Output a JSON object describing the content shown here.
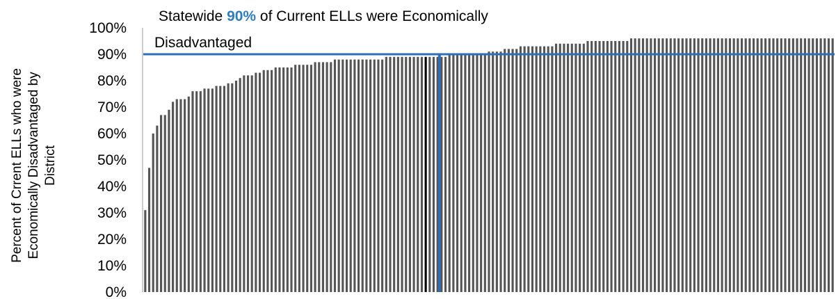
{
  "chart_data": {
    "type": "bar",
    "ylabel_lines": [
      "Percent of Crrent ELLs who were",
      "Economically Disadvantaged by",
      "District"
    ],
    "ylim": [
      0,
      100
    ],
    "yticks": [
      0,
      10,
      20,
      30,
      40,
      50,
      60,
      70,
      80,
      90,
      100
    ],
    "tick_suffix": "%",
    "reference_line": {
      "value": 90
    },
    "annotation": {
      "prefix": "Statewide ",
      "highlight": "90%",
      "suffix": " of Current ELLs were Economically",
      "line2": "Disadvantaged"
    },
    "highlight_index": 71,
    "highlight_position_index": 72,
    "values": [
      31,
      47,
      60,
      63,
      67,
      67,
      69,
      72,
      73,
      73,
      73,
      74,
      76,
      76,
      76,
      77,
      77,
      77,
      78,
      78,
      78,
      79,
      79,
      80,
      81,
      82,
      82,
      82,
      83,
      83,
      84,
      84,
      84,
      85,
      85,
      85,
      85,
      85,
      86,
      86,
      86,
      86,
      86,
      87,
      87,
      87,
      87,
      87,
      88,
      88,
      88,
      88,
      88,
      88,
      88,
      88,
      88,
      88,
      88,
      88,
      88,
      89,
      89,
      89,
      89,
      89,
      89,
      89,
      89,
      89,
      89,
      89,
      89,
      89,
      89,
      89,
      89,
      90,
      90,
      90,
      90,
      90,
      90,
      90,
      90,
      90,
      90,
      91,
      91,
      91,
      91,
      92,
      92,
      92,
      92,
      93,
      93,
      93,
      93,
      93,
      93,
      93,
      93,
      93,
      94,
      94,
      94,
      94,
      94,
      94,
      94,
      94,
      95,
      95,
      95,
      95,
      95,
      95,
      95,
      95,
      95,
      95,
      95,
      96,
      96,
      96,
      96,
      96,
      96,
      96,
      96,
      96,
      96,
      96,
      96,
      96,
      96,
      96,
      96,
      96,
      96,
      96,
      96,
      96,
      96,
      96,
      96,
      96,
      96,
      96,
      96,
      96,
      96,
      96,
      96,
      96,
      96,
      96,
      96,
      96,
      96,
      96,
      96,
      96,
      96,
      96,
      96,
      96,
      96,
      96,
      96,
      96,
      96,
      96,
      96
    ],
    "colors": {
      "bar": "#555555",
      "highlight_bar": "#000000",
      "reference": "#2f6db5",
      "annotation_highlight": "#2f7cc0",
      "axis": "#999999"
    },
    "grid": false,
    "legend": "none"
  }
}
